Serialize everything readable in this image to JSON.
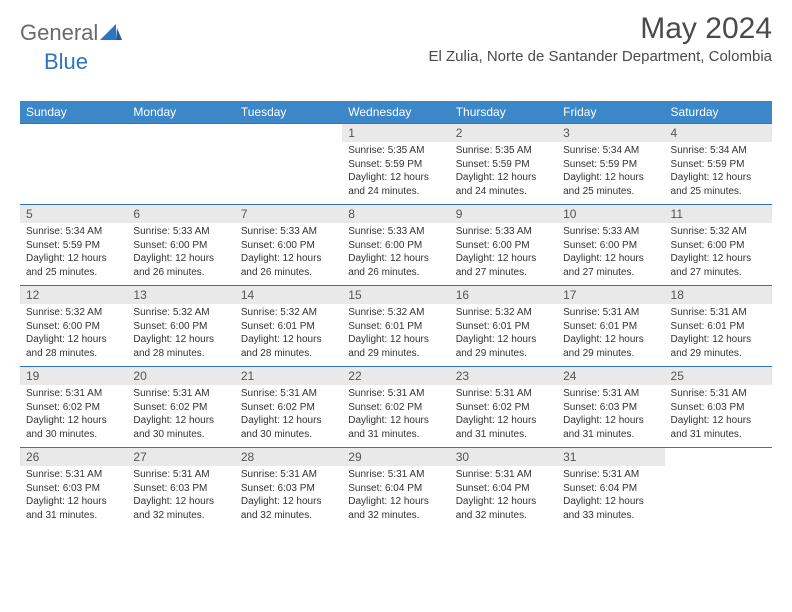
{
  "brand": {
    "general": "General",
    "blue": "Blue"
  },
  "title": "May 2024",
  "location": "El Zulia, Norte de Santander Department, Colombia",
  "day_headers": [
    "Sunday",
    "Monday",
    "Tuesday",
    "Wednesday",
    "Thursday",
    "Friday",
    "Saturday"
  ],
  "colors": {
    "header_bg": "#3b87c8",
    "header_text": "#ffffff",
    "daynum_bg": "#e9e9e9",
    "border": "#2e75c0",
    "logo_gray": "#6a6a6a",
    "logo_blue": "#2e75c0"
  },
  "weeks": [
    {
      "nums": [
        "",
        "",
        "",
        "1",
        "2",
        "3",
        "4"
      ],
      "details": [
        [],
        [],
        [],
        [
          "Sunrise: 5:35 AM",
          "Sunset: 5:59 PM",
          "Daylight: 12 hours",
          "and 24 minutes."
        ],
        [
          "Sunrise: 5:35 AM",
          "Sunset: 5:59 PM",
          "Daylight: 12 hours",
          "and 24 minutes."
        ],
        [
          "Sunrise: 5:34 AM",
          "Sunset: 5:59 PM",
          "Daylight: 12 hours",
          "and 25 minutes."
        ],
        [
          "Sunrise: 5:34 AM",
          "Sunset: 5:59 PM",
          "Daylight: 12 hours",
          "and 25 minutes."
        ]
      ]
    },
    {
      "nums": [
        "5",
        "6",
        "7",
        "8",
        "9",
        "10",
        "11"
      ],
      "details": [
        [
          "Sunrise: 5:34 AM",
          "Sunset: 5:59 PM",
          "Daylight: 12 hours",
          "and 25 minutes."
        ],
        [
          "Sunrise: 5:33 AM",
          "Sunset: 6:00 PM",
          "Daylight: 12 hours",
          "and 26 minutes."
        ],
        [
          "Sunrise: 5:33 AM",
          "Sunset: 6:00 PM",
          "Daylight: 12 hours",
          "and 26 minutes."
        ],
        [
          "Sunrise: 5:33 AM",
          "Sunset: 6:00 PM",
          "Daylight: 12 hours",
          "and 26 minutes."
        ],
        [
          "Sunrise: 5:33 AM",
          "Sunset: 6:00 PM",
          "Daylight: 12 hours",
          "and 27 minutes."
        ],
        [
          "Sunrise: 5:33 AM",
          "Sunset: 6:00 PM",
          "Daylight: 12 hours",
          "and 27 minutes."
        ],
        [
          "Sunrise: 5:32 AM",
          "Sunset: 6:00 PM",
          "Daylight: 12 hours",
          "and 27 minutes."
        ]
      ]
    },
    {
      "nums": [
        "12",
        "13",
        "14",
        "15",
        "16",
        "17",
        "18"
      ],
      "details": [
        [
          "Sunrise: 5:32 AM",
          "Sunset: 6:00 PM",
          "Daylight: 12 hours",
          "and 28 minutes."
        ],
        [
          "Sunrise: 5:32 AM",
          "Sunset: 6:00 PM",
          "Daylight: 12 hours",
          "and 28 minutes."
        ],
        [
          "Sunrise: 5:32 AM",
          "Sunset: 6:01 PM",
          "Daylight: 12 hours",
          "and 28 minutes."
        ],
        [
          "Sunrise: 5:32 AM",
          "Sunset: 6:01 PM",
          "Daylight: 12 hours",
          "and 29 minutes."
        ],
        [
          "Sunrise: 5:32 AM",
          "Sunset: 6:01 PM",
          "Daylight: 12 hours",
          "and 29 minutes."
        ],
        [
          "Sunrise: 5:31 AM",
          "Sunset: 6:01 PM",
          "Daylight: 12 hours",
          "and 29 minutes."
        ],
        [
          "Sunrise: 5:31 AM",
          "Sunset: 6:01 PM",
          "Daylight: 12 hours",
          "and 29 minutes."
        ]
      ]
    },
    {
      "nums": [
        "19",
        "20",
        "21",
        "22",
        "23",
        "24",
        "25"
      ],
      "details": [
        [
          "Sunrise: 5:31 AM",
          "Sunset: 6:02 PM",
          "Daylight: 12 hours",
          "and 30 minutes."
        ],
        [
          "Sunrise: 5:31 AM",
          "Sunset: 6:02 PM",
          "Daylight: 12 hours",
          "and 30 minutes."
        ],
        [
          "Sunrise: 5:31 AM",
          "Sunset: 6:02 PM",
          "Daylight: 12 hours",
          "and 30 minutes."
        ],
        [
          "Sunrise: 5:31 AM",
          "Sunset: 6:02 PM",
          "Daylight: 12 hours",
          "and 31 minutes."
        ],
        [
          "Sunrise: 5:31 AM",
          "Sunset: 6:02 PM",
          "Daylight: 12 hours",
          "and 31 minutes."
        ],
        [
          "Sunrise: 5:31 AM",
          "Sunset: 6:03 PM",
          "Daylight: 12 hours",
          "and 31 minutes."
        ],
        [
          "Sunrise: 5:31 AM",
          "Sunset: 6:03 PM",
          "Daylight: 12 hours",
          "and 31 minutes."
        ]
      ]
    },
    {
      "nums": [
        "26",
        "27",
        "28",
        "29",
        "30",
        "31",
        ""
      ],
      "details": [
        [
          "Sunrise: 5:31 AM",
          "Sunset: 6:03 PM",
          "Daylight: 12 hours",
          "and 31 minutes."
        ],
        [
          "Sunrise: 5:31 AM",
          "Sunset: 6:03 PM",
          "Daylight: 12 hours",
          "and 32 minutes."
        ],
        [
          "Sunrise: 5:31 AM",
          "Sunset: 6:03 PM",
          "Daylight: 12 hours",
          "and 32 minutes."
        ],
        [
          "Sunrise: 5:31 AM",
          "Sunset: 6:04 PM",
          "Daylight: 12 hours",
          "and 32 minutes."
        ],
        [
          "Sunrise: 5:31 AM",
          "Sunset: 6:04 PM",
          "Daylight: 12 hours",
          "and 32 minutes."
        ],
        [
          "Sunrise: 5:31 AM",
          "Sunset: 6:04 PM",
          "Daylight: 12 hours",
          "and 33 minutes."
        ],
        []
      ]
    }
  ]
}
